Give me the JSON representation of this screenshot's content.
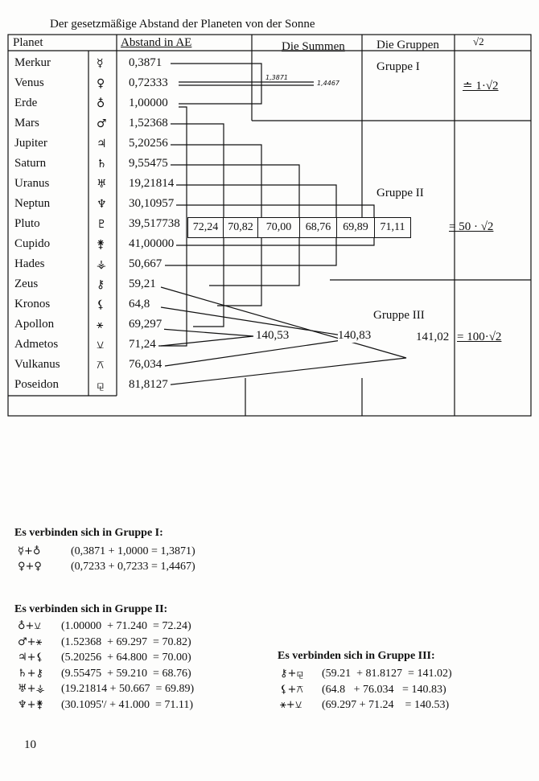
{
  "title": "Der gesetzmäßige Abstand der Planeten von der Sonne",
  "headers": {
    "planet": "Planet",
    "abstand": "Abstand in AE",
    "summen": "Die Summen",
    "gruppen": "Die Gruppen",
    "sqrt": "√2"
  },
  "planets": [
    {
      "name": "Merkur",
      "symbol": "☿",
      "abstand": "0,3871"
    },
    {
      "name": "Venus",
      "symbol": "♀",
      "abstand": "0,72333"
    },
    {
      "name": "Erde",
      "symbol": "♁",
      "abstand": "1,00000"
    },
    {
      "name": "Mars",
      "symbol": "♂",
      "abstand": "1,52368"
    },
    {
      "name": "Jupiter",
      "symbol": "♃",
      "abstand": "5,20256"
    },
    {
      "name": "Saturn",
      "symbol": "♄",
      "abstand": "9,55475"
    },
    {
      "name": "Uranus",
      "symbol": "♅",
      "abstand": "19,21814"
    },
    {
      "name": "Neptun",
      "symbol": "♆",
      "abstand": "30,10957"
    },
    {
      "name": "Pluto",
      "symbol": "♇",
      "abstand": "39,517738"
    },
    {
      "name": "Cupido",
      "symbol": "⚵",
      "abstand": "41,00000"
    },
    {
      "name": "Hades",
      "symbol": "⚶",
      "abstand": "50,667"
    },
    {
      "name": "Zeus",
      "symbol": "⚷",
      "abstand": "59,21"
    },
    {
      "name": "Kronos",
      "symbol": "⚸",
      "abstand": "64,8"
    },
    {
      "name": "Apollon",
      "symbol": "⚹",
      "abstand": "69,297"
    },
    {
      "name": "Admetos",
      "symbol": "⚺",
      "abstand": "71,24"
    },
    {
      "name": "Vulkanus",
      "symbol": "⚻",
      "abstand": "76,034"
    },
    {
      "name": "Poseidon",
      "symbol": "⚼",
      "abstand": "81,8127"
    }
  ],
  "gruppe1": {
    "label": "Gruppe I",
    "sum_a": "1,3871",
    "sum_b": "1,4467",
    "factor": "≐ 1·√2"
  },
  "gruppe2": {
    "label": "Gruppe II",
    "sums": [
      "72,24",
      "70,82",
      "70,00",
      "68,76",
      "69,89",
      "71,11"
    ],
    "factor": "= 50 · √2"
  },
  "gruppe3": {
    "label": "Gruppe III",
    "sums": [
      "140,53",
      "140,83",
      "141,02"
    ],
    "factor": "= 100·√2"
  },
  "notes": {
    "g1_title": "Es verbinden sich in Gruppe I:",
    "g1": [
      {
        "sym": "☿+♁",
        "eq": "(0,3871 + 1,0000 = 1,3871)"
      },
      {
        "sym": "♀+♀",
        "eq": "(0,7233 + 0,7233 = 1,4467)"
      }
    ],
    "g2_title": "Es verbinden sich in Gruppe II:",
    "g2": [
      {
        "sym": "♁+⚺",
        "eq": "(1.00000  + 71.240  = 72.24)"
      },
      {
        "sym": "♂+⚹",
        "eq": "(1.52368  + 69.297  = 70.82)"
      },
      {
        "sym": "♃+⚸",
        "eq": "(5.20256  + 64.800  = 70.00)"
      },
      {
        "sym": "♄+⚷",
        "eq": "(9.55475  + 59.210  = 68.76)"
      },
      {
        "sym": "♅+⚶",
        "eq": "(19.21814 + 50.667  = 69.89)"
      },
      {
        "sym": "♆+⚵",
        "eq": "(30.1095'/ + 41.000  = 71.11)"
      }
    ],
    "g3_title": "Es verbinden sich in Gruppe III:",
    "g3": [
      {
        "sym": "⚷+⚼",
        "eq": "(59.21  + 81.8127  = 141.02)"
      },
      {
        "sym": "⚸+⚻",
        "eq": "(64.8   + 76.034   = 140.83)"
      },
      {
        "sym": "⚹+⚺",
        "eq": "(69.297 + 71.24    = 140.53)"
      }
    ]
  },
  "page_number": "10"
}
